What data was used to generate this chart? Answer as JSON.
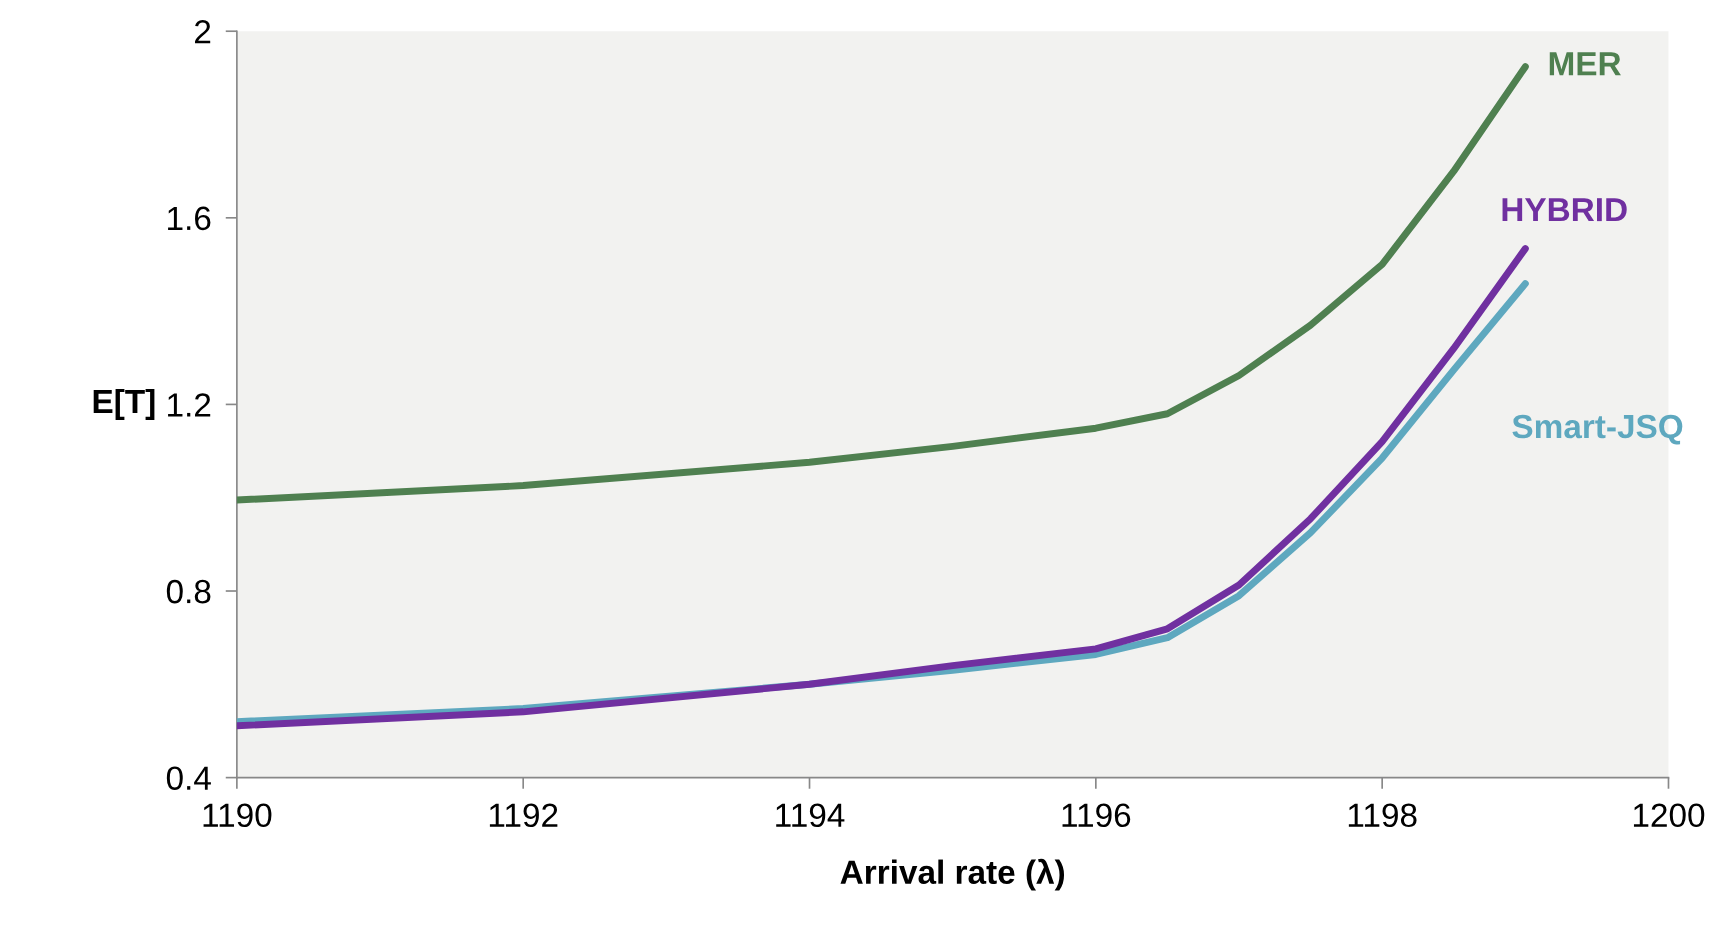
{
  "chart_data": {
    "type": "line",
    "xlabel": "Arrival rate (λ)",
    "ylabel": "E[T]",
    "x": [
      1190,
      1192,
      1194,
      1195,
      1196,
      1196.5,
      1197,
      1197.5,
      1198,
      1198.5,
      1199
    ],
    "series": [
      {
        "name": "MER",
        "color": "#4f8050",
        "values": [
          0.995,
          1.026,
          1.076,
          1.11,
          1.149,
          1.18,
          1.262,
          1.37,
          1.5,
          1.7,
          1.924
        ]
      },
      {
        "name": "Smart-JSQ",
        "color": "#5ea8bf",
        "values": [
          0.52,
          0.548,
          0.6,
          0.63,
          0.664,
          0.7,
          0.79,
          0.925,
          1.085,
          1.274,
          1.459
        ]
      },
      {
        "name": "HYBRID",
        "color": "#7030a0",
        "values": [
          0.511,
          0.541,
          0.6,
          0.64,
          0.676,
          0.719,
          0.813,
          0.955,
          1.12,
          1.32,
          1.534
        ]
      }
    ],
    "xlim": [
      1190,
      1200
    ],
    "xticks": [
      1190,
      1192,
      1194,
      1196,
      1198,
      1200
    ],
    "ylim": [
      0.4,
      2
    ],
    "yticks": [
      0.4,
      0.8,
      1.2,
      1.6,
      2
    ],
    "grid": false,
    "legend": false,
    "marker": "none",
    "line_style": "solid"
  }
}
